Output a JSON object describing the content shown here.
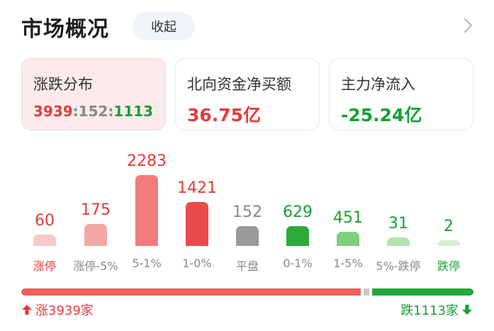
{
  "header": {
    "title": "市场概况",
    "collapse_label": "收起",
    "chevron_icon": "chevron-right-icon"
  },
  "cards": [
    {
      "label": "涨跌分布",
      "up": "3939",
      "sep1": ":",
      "flat": "152",
      "sep2": ":",
      "down": "1113"
    },
    {
      "label": "北向资金净买额",
      "value": "36.75亿"
    },
    {
      "label": "主力净流入",
      "value": "-25.24亿"
    }
  ],
  "chart_data": {
    "type": "bar",
    "categories": [
      "涨停",
      "涨停-5%",
      "5-1%",
      "1-0%",
      "平盘",
      "0-1%",
      "1-5%",
      "5%-跌停",
      "跌停"
    ],
    "values": [
      60,
      175,
      2283,
      1421,
      152,
      629,
      451,
      31,
      2
    ],
    "colors": [
      "#f8c9c9",
      "#f4a7a7",
      "#f47b7b",
      "#ea4a4a",
      "#999999",
      "#2eaa3b",
      "#7fcf7a",
      "#b4e2b0",
      "#d4efd1"
    ],
    "label_colors": [
      "#e33b3b",
      "#e33b3b",
      "#e33b3b",
      "#e33b3b",
      "#888888",
      "#16a034",
      "#16a034",
      "#16a034",
      "#16a034"
    ],
    "category_colors": [
      "#e33b3b",
      "#888888",
      "#888888",
      "#888888",
      "#888888",
      "#888888",
      "#888888",
      "#888888",
      "#16a034"
    ]
  },
  "summary": {
    "up_count": 3939,
    "flat_count": 152,
    "down_count": 1113,
    "up_text": "涨3939家",
    "down_text": "跌1113家",
    "up_icon": "arrow-up-icon",
    "down_icon": "arrow-down-icon"
  }
}
